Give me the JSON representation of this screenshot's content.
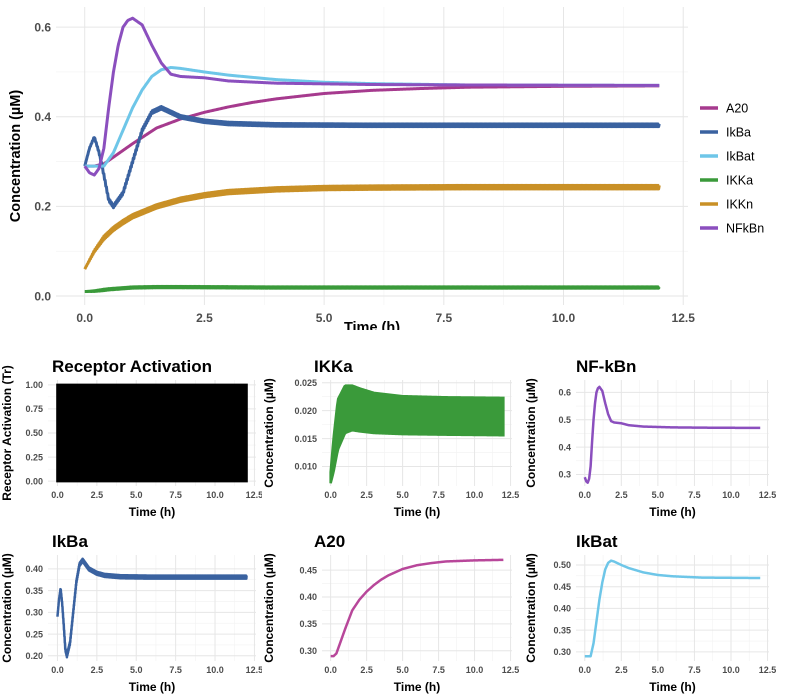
{
  "chart_data": [
    {
      "id": "main",
      "type": "line",
      "title": "",
      "xlabel": "Time (h)",
      "ylabel": "Concentration (µM)",
      "xlim": [
        -0.6,
        12.6
      ],
      "ylim": [
        -0.02,
        0.645
      ],
      "xticks": [
        0.0,
        2.5,
        5.0,
        7.5,
        10.0,
        12.5
      ],
      "xtick_labels": [
        "0.0",
        "2.5",
        "5.0",
        "7.5",
        "10.0",
        "12.5"
      ],
      "yticks": [
        0.0,
        0.2,
        0.4,
        0.6
      ],
      "ytick_labels": [
        "0.0",
        "0.2",
        "0.4",
        "0.6"
      ],
      "grid": true,
      "legend": "right",
      "series": [
        {
          "name": "A20",
          "color": "#A63A8E",
          "osc": 0,
          "x": [
            0,
            0.2,
            0.4,
            0.6,
            0.8,
            1.0,
            1.5,
            2.0,
            2.5,
            3.0,
            3.5,
            4.0,
            5.0,
            6.0,
            7.0,
            8.0,
            10.0,
            12.0
          ],
          "y": [
            0.29,
            0.29,
            0.295,
            0.31,
            0.325,
            0.34,
            0.375,
            0.395,
            0.41,
            0.422,
            0.432,
            0.44,
            0.452,
            0.459,
            0.463,
            0.466,
            0.468,
            0.469
          ]
        },
        {
          "name": "IkBa",
          "color": "#3A62A0",
          "osc": 0.006,
          "x": [
            0,
            0.1,
            0.2,
            0.3,
            0.4,
            0.5,
            0.6,
            0.8,
            1.0,
            1.2,
            1.4,
            1.6,
            1.8,
            2.0,
            2.5,
            3.0,
            4.0,
            6.0,
            8.0,
            12.0
          ],
          "y": [
            0.29,
            0.33,
            0.355,
            0.32,
            0.27,
            0.215,
            0.2,
            0.23,
            0.3,
            0.37,
            0.41,
            0.42,
            0.41,
            0.4,
            0.39,
            0.385,
            0.382,
            0.381,
            0.381,
            0.381
          ]
        },
        {
          "name": "IkBat",
          "color": "#6EC6E8",
          "osc": 0,
          "x": [
            0,
            0.2,
            0.4,
            0.6,
            0.8,
            1.0,
            1.2,
            1.4,
            1.6,
            1.8,
            2.0,
            2.5,
            3.0,
            4.0,
            5.0,
            6.0,
            8.0,
            12.0
          ],
          "y": [
            0.29,
            0.29,
            0.29,
            0.32,
            0.37,
            0.42,
            0.46,
            0.49,
            0.505,
            0.51,
            0.508,
            0.5,
            0.493,
            0.483,
            0.477,
            0.474,
            0.471,
            0.47
          ]
        },
        {
          "name": "IKKa",
          "color": "#3A9A3A",
          "osc": 0.003,
          "x": [
            0,
            0.2,
            0.5,
            1.0,
            1.5,
            2.0,
            4.0,
            8.0,
            12.0
          ],
          "y": [
            0.01,
            0.011,
            0.015,
            0.019,
            0.02,
            0.02,
            0.019,
            0.019,
            0.019
          ]
        },
        {
          "name": "IKKn",
          "color": "#C99026",
          "osc": 0.008,
          "x": [
            0,
            0.2,
            0.4,
            0.6,
            0.8,
            1.0,
            1.5,
            2.0,
            2.5,
            3.0,
            4.0,
            5.0,
            6.0,
            8.0,
            12.0
          ],
          "y": [
            0.06,
            0.1,
            0.13,
            0.15,
            0.165,
            0.178,
            0.2,
            0.215,
            0.225,
            0.232,
            0.238,
            0.241,
            0.242,
            0.243,
            0.243
          ]
        },
        {
          "name": "NFkBn",
          "color": "#8B4FBE",
          "osc": 0,
          "x": [
            0,
            0.1,
            0.2,
            0.3,
            0.4,
            0.5,
            0.6,
            0.7,
            0.8,
            0.9,
            1.0,
            1.2,
            1.4,
            1.6,
            1.8,
            2.0,
            2.5,
            3.0,
            4.0,
            6.0,
            8.0,
            12.0
          ],
          "y": [
            0.29,
            0.275,
            0.27,
            0.285,
            0.33,
            0.42,
            0.5,
            0.56,
            0.6,
            0.615,
            0.62,
            0.605,
            0.56,
            0.52,
            0.495,
            0.49,
            0.487,
            0.48,
            0.475,
            0.472,
            0.471,
            0.47
          ]
        }
      ]
    },
    {
      "id": "receptor",
      "type": "area",
      "title": "Receptor Activation",
      "xlabel": "Time (h)",
      "ylabel": "Receptor Activation (Tr)",
      "xlim": [
        -0.6,
        12.6
      ],
      "ylim": [
        -0.05,
        1.05
      ],
      "xticks": [
        0.0,
        2.5,
        5.0,
        7.5,
        10.0,
        12.5
      ],
      "xtick_labels": [
        "0.0",
        "2.5",
        "5.0",
        "7.5",
        "10.0",
        "12.5"
      ],
      "yticks": [
        0.0,
        0.25,
        0.5,
        0.75,
        1.0
      ],
      "ytick_labels": [
        "0.00",
        "0.25",
        "0.50",
        "0.75",
        "1.00"
      ],
      "grid": true,
      "series": [
        {
          "name": "",
          "color": "#000000",
          "band": true,
          "x": [
            0,
            12
          ],
          "lo": [
            0,
            0
          ],
          "hi": [
            1,
            1
          ]
        }
      ]
    },
    {
      "id": "ikka",
      "type": "line",
      "title": "IKKa",
      "xlabel": "Time (h)",
      "ylabel": "Concentration (µM)",
      "xlim": [
        -0.6,
        12.6
      ],
      "ylim": [
        0.0065,
        0.0255
      ],
      "xticks": [
        0.0,
        2.5,
        5.0,
        7.5,
        10.0,
        12.5
      ],
      "xtick_labels": [
        "0.0",
        "2.5",
        "5.0",
        "7.5",
        "10.0",
        "12.5"
      ],
      "yticks": [
        0.01,
        0.015,
        0.02,
        0.025
      ],
      "ytick_labels": [
        "0.010",
        "0.015",
        "0.020",
        "0.025"
      ],
      "grid": true,
      "series": [
        {
          "name": "",
          "color": "#3A9A3A",
          "band": true,
          "x": [
            0,
            0.2,
            0.5,
            1.0,
            1.5,
            2.0,
            3.0,
            5.0,
            8.0,
            12.0
          ],
          "lo": [
            0.007,
            0.009,
            0.013,
            0.016,
            0.0165,
            0.0163,
            0.016,
            0.0158,
            0.0157,
            0.0156
          ],
          "hi": [
            0.009,
            0.015,
            0.022,
            0.0245,
            0.0245,
            0.024,
            0.0232,
            0.0226,
            0.0224,
            0.0223
          ]
        }
      ]
    },
    {
      "id": "nfkbn",
      "type": "line",
      "title": "NF-kBn",
      "xlabel": "Time (h)",
      "ylabel": "Concentration (µM)",
      "xlim": [
        -0.6,
        12.6
      ],
      "ylim": [
        0.258,
        0.645
      ],
      "xticks": [
        0.0,
        2.5,
        5.0,
        7.5,
        10.0,
        12.5
      ],
      "xtick_labels": [
        "0.0",
        "2.5",
        "5.0",
        "7.5",
        "10.0",
        "12.5"
      ],
      "yticks": [
        0.3,
        0.4,
        0.5,
        0.6
      ],
      "ytick_labels": [
        "0.3",
        "0.4",
        "0.5",
        "0.6"
      ],
      "grid": true,
      "series": [
        {
          "name": "",
          "color": "#8B4FBE",
          "osc": 0,
          "x": [
            0,
            0.1,
            0.2,
            0.3,
            0.4,
            0.5,
            0.6,
            0.7,
            0.8,
            0.9,
            1.0,
            1.2,
            1.4,
            1.6,
            1.8,
            2.0,
            2.5,
            3.0,
            4.0,
            6.0,
            8.0,
            12.0
          ],
          "y": [
            0.29,
            0.275,
            0.27,
            0.285,
            0.33,
            0.42,
            0.5,
            0.56,
            0.6,
            0.615,
            0.62,
            0.605,
            0.56,
            0.52,
            0.495,
            0.49,
            0.487,
            0.48,
            0.475,
            0.472,
            0.471,
            0.47
          ]
        }
      ]
    },
    {
      "id": "ikba",
      "type": "line",
      "title": "IkBa",
      "xlabel": "Time (h)",
      "ylabel": "Concentration (µM)",
      "xlim": [
        -0.6,
        12.6
      ],
      "ylim": [
        0.188,
        0.432
      ],
      "xticks": [
        0.0,
        2.5,
        5.0,
        7.5,
        10.0,
        12.5
      ],
      "xtick_labels": [
        "0.0",
        "2.5",
        "5.0",
        "7.5",
        "10.0",
        "12.5"
      ],
      "yticks": [
        0.2,
        0.25,
        0.3,
        0.35,
        0.4
      ],
      "ytick_labels": [
        "0.20",
        "0.25",
        "0.30",
        "0.35",
        "0.40"
      ],
      "grid": true,
      "series": [
        {
          "name": "",
          "color": "#3A62A0",
          "osc": 0.007,
          "x": [
            0,
            0.1,
            0.2,
            0.3,
            0.4,
            0.5,
            0.6,
            0.8,
            1.0,
            1.2,
            1.4,
            1.6,
            1.8,
            2.0,
            2.5,
            3.0,
            4.0,
            6.0,
            8.0,
            12.0
          ],
          "y": [
            0.29,
            0.33,
            0.355,
            0.32,
            0.27,
            0.215,
            0.2,
            0.23,
            0.3,
            0.37,
            0.41,
            0.42,
            0.41,
            0.4,
            0.39,
            0.385,
            0.382,
            0.381,
            0.381,
            0.381
          ]
        }
      ]
    },
    {
      "id": "a20",
      "type": "line",
      "title": "A20",
      "xlabel": "Time (h)",
      "ylabel": "Concentration (µM)",
      "xlim": [
        -0.6,
        12.6
      ],
      "ylim": [
        0.281,
        0.478
      ],
      "xticks": [
        0.0,
        2.5,
        5.0,
        7.5,
        10.0,
        12.5
      ],
      "xtick_labels": [
        "0.0",
        "2.5",
        "5.0",
        "7.5",
        "10.0",
        "12.5"
      ],
      "yticks": [
        0.3,
        0.35,
        0.4,
        0.45
      ],
      "ytick_labels": [
        "0.30",
        "0.35",
        "0.40",
        "0.45"
      ],
      "grid": true,
      "series": [
        {
          "name": "",
          "color": "#B8479A",
          "osc": 0,
          "x": [
            0,
            0.2,
            0.4,
            0.6,
            0.8,
            1.0,
            1.5,
            2.0,
            2.5,
            3.0,
            3.5,
            4.0,
            5.0,
            6.0,
            7.0,
            8.0,
            10.0,
            12.0
          ],
          "y": [
            0.29,
            0.29,
            0.295,
            0.31,
            0.325,
            0.34,
            0.375,
            0.395,
            0.41,
            0.422,
            0.432,
            0.44,
            0.452,
            0.459,
            0.463,
            0.466,
            0.468,
            0.469
          ]
        }
      ]
    },
    {
      "id": "ikbat",
      "type": "line",
      "title": "IkBat",
      "xlabel": "Time (h)",
      "ylabel": "Concentration (µM)",
      "xlim": [
        -0.6,
        12.6
      ],
      "ylim": [
        0.279,
        0.523
      ],
      "xticks": [
        0.0,
        2.5,
        5.0,
        7.5,
        10.0,
        12.5
      ],
      "xtick_labels": [
        "0.0",
        "2.5",
        "5.0",
        "7.5",
        "10.0",
        "12.5"
      ],
      "yticks": [
        0.3,
        0.35,
        0.4,
        0.45,
        0.5
      ],
      "ytick_labels": [
        "0.30",
        "0.35",
        "0.40",
        "0.45",
        "0.50"
      ],
      "grid": true,
      "series": [
        {
          "name": "",
          "color": "#6EC6E8",
          "osc": 0,
          "x": [
            0,
            0.2,
            0.4,
            0.6,
            0.8,
            1.0,
            1.2,
            1.4,
            1.6,
            1.8,
            2.0,
            2.5,
            3.0,
            4.0,
            5.0,
            6.0,
            8.0,
            12.0
          ],
          "y": [
            0.29,
            0.29,
            0.29,
            0.32,
            0.37,
            0.42,
            0.46,
            0.49,
            0.505,
            0.51,
            0.508,
            0.5,
            0.493,
            0.483,
            0.477,
            0.474,
            0.471,
            0.47
          ]
        }
      ]
    }
  ]
}
